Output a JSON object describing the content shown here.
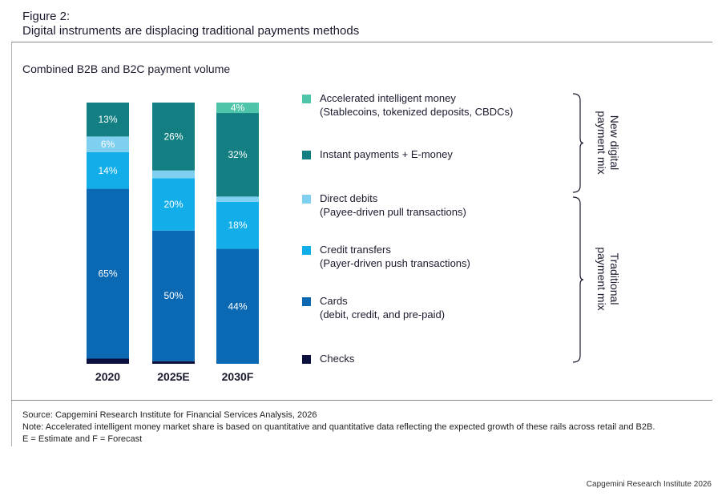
{
  "figure": {
    "label": "Figure 2:",
    "title": "Digital instruments are displacing traditional payments methods",
    "subtitle": "Combined B2B and B2C payment volume"
  },
  "chart_data": {
    "type": "bar",
    "stacked": true,
    "unit": "%",
    "categories": [
      "2020",
      "2025E",
      "2030F"
    ],
    "series": [
      {
        "name": "Checks",
        "sub": "",
        "color": "#0b0f3d",
        "values": [
          2,
          1,
          0
        ],
        "labels": [
          "2%",
          "1%",
          "0%"
        ]
      },
      {
        "name": "Cards",
        "sub": "(debit, credit, and pre-paid)",
        "color": "#0b68b2",
        "values": [
          65,
          50,
          44
        ],
        "labels": [
          "65%",
          "50%",
          "44%"
        ]
      },
      {
        "name": "Credit transfers",
        "sub": "(Payer-driven push transactions)",
        "color": "#12aeea",
        "values": [
          14,
          20,
          18
        ],
        "labels": [
          "14%",
          "20%",
          "18%"
        ]
      },
      {
        "name": "Direct debits",
        "sub": "(Payee-driven pull transactions)",
        "color": "#7fd0f0",
        "values": [
          6,
          3,
          2
        ],
        "labels": [
          "6%",
          "3%",
          "2%"
        ]
      },
      {
        "name": "Instant payments + E-money",
        "sub": "",
        "color": "#137f82",
        "values": [
          13,
          26,
          32
        ],
        "labels": [
          "13%",
          "26%",
          "32%"
        ]
      },
      {
        "name": "Accelerated intelligent money",
        "sub": "(Stablecoins, tokenized deposits, CBDCs)",
        "color": "#4ec4a8",
        "values": [
          0,
          0,
          4
        ],
        "labels": [
          "",
          "",
          "4%"
        ]
      }
    ],
    "groups": [
      {
        "label_lines": [
          "New digital",
          "payment mix"
        ]
      },
      {
        "label_lines": [
          "Traditional",
          "payment mix"
        ]
      }
    ]
  },
  "footer": {
    "source": "Source: Capgemini Research Institute for Financial Services Analysis, 2026",
    "note": "Note: Accelerated intelligent money market share is based on quantitative and quantitative data reflecting the expected growth of these rails across retail and B2B.",
    "abbrev": "E = Estimate and F = Forecast",
    "credit": "Capgemini Research Institute 2026"
  }
}
